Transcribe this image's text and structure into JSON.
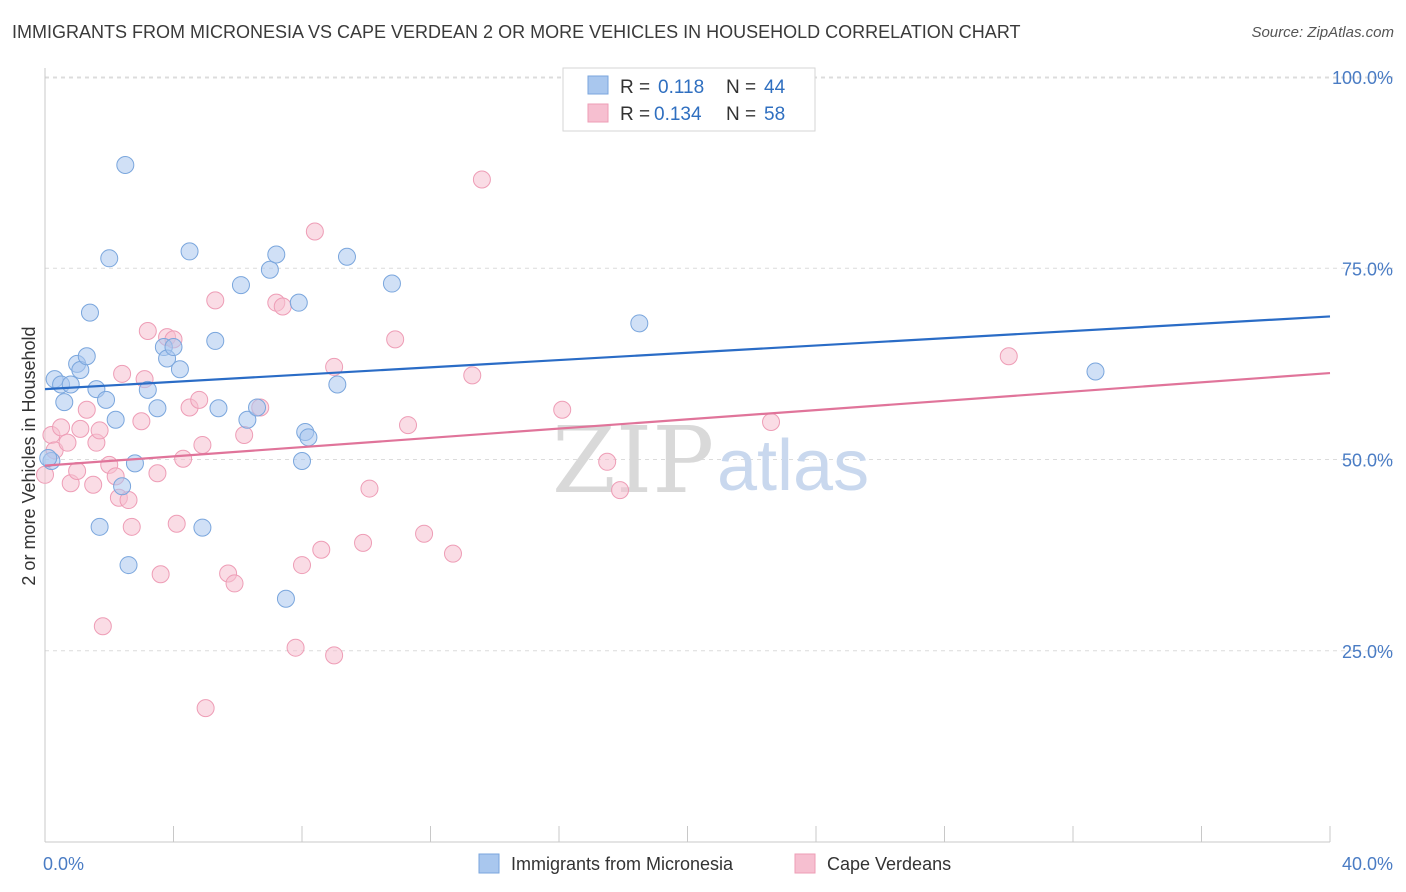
{
  "title": "IMMIGRANTS FROM MICRONESIA VS CAPE VERDEAN 2 OR MORE VEHICLES IN HOUSEHOLD CORRELATION CHART",
  "source": "Source: ZipAtlas.com",
  "watermark": {
    "zip": "ZIP",
    "atlas": "atlas"
  },
  "legend_top": {
    "r_label": "R =",
    "n_label": "N =",
    "rows": [
      {
        "r": "0.118",
        "n": "44"
      },
      {
        "r": "0.134",
        "n": "58"
      }
    ]
  },
  "colors": {
    "blue_fill": "#a9c7ee",
    "blue_stroke": "#7aa6dd",
    "blue_line": "#2a6cc6",
    "pink_fill": "#f6bfd0",
    "pink_stroke": "#ee9db6",
    "pink_line": "#e0749a",
    "axis_text": "#4a7cc4",
    "grid": "#dcdcdc"
  },
  "chart_data": {
    "type": "scatter",
    "title": "IMMIGRANTS FROM MICRONESIA VS CAPE VERDEAN 2 OR MORE VEHICLES IN HOUSEHOLD CORRELATION CHART",
    "xlabel": "",
    "ylabel": "2 or more Vehicles in Household",
    "xlim": [
      0,
      40
    ],
    "ylim": [
      0,
      105
    ],
    "x_tick_labels": [
      "0.0%",
      "40.0%"
    ],
    "y_ticks": [
      25,
      50,
      75,
      100
    ],
    "y_tick_labels": [
      "25.0%",
      "50.0%",
      "75.0%",
      "100.0%"
    ],
    "grid": "horizontal dashed",
    "legend_position": "top-center and bottom",
    "series": [
      {
        "name": "Immigrants from Micronesia",
        "color": "#a9c7ee",
        "r": 0.118,
        "n": 44,
        "trend": {
          "x": [
            0,
            40
          ],
          "y": [
            59.2,
            68.7
          ]
        },
        "points": [
          [
            0.2,
            49.8
          ],
          [
            0.3,
            60.5
          ],
          [
            0.5,
            59.8
          ],
          [
            0.6,
            57.5
          ],
          [
            0.8,
            59.8
          ],
          [
            1.0,
            62.5
          ],
          [
            1.1,
            61.7
          ],
          [
            1.3,
            63.5
          ],
          [
            1.4,
            69.2
          ],
          [
            1.6,
            59.2
          ],
          [
            1.7,
            41.2
          ],
          [
            1.9,
            57.8
          ],
          [
            2.0,
            76.3
          ],
          [
            2.2,
            55.2
          ],
          [
            2.4,
            46.5
          ],
          [
            2.5,
            88.5
          ],
          [
            2.6,
            36.2
          ],
          [
            2.8,
            49.5
          ],
          [
            3.2,
            59.1
          ],
          [
            3.5,
            56.7
          ],
          [
            3.7,
            64.7
          ],
          [
            3.8,
            63.2
          ],
          [
            4.0,
            64.7
          ],
          [
            4.2,
            61.8
          ],
          [
            4.5,
            77.2
          ],
          [
            4.9,
            41.1
          ],
          [
            5.3,
            65.5
          ],
          [
            5.4,
            56.7
          ],
          [
            6.1,
            72.8
          ],
          [
            6.3,
            55.2
          ],
          [
            6.6,
            56.8
          ],
          [
            7.0,
            74.8
          ],
          [
            7.2,
            76.8
          ],
          [
            7.5,
            31.8
          ],
          [
            7.9,
            70.5
          ],
          [
            8.0,
            49.8
          ],
          [
            8.1,
            53.6
          ],
          [
            8.2,
            52.9
          ],
          [
            9.1,
            59.8
          ],
          [
            9.4,
            76.5
          ],
          [
            10.8,
            73.0
          ],
          [
            18.5,
            67.8
          ],
          [
            32.7,
            61.5
          ],
          [
            0.1,
            50.2
          ]
        ]
      },
      {
        "name": "Cape Verdeans",
        "color": "#f6bfd0",
        "r": 0.134,
        "n": 58,
        "trend": {
          "x": [
            0,
            40
          ],
          "y": [
            49.2,
            61.3
          ]
        },
        "points": [
          [
            0.0,
            48.0
          ],
          [
            0.2,
            53.2
          ],
          [
            0.3,
            51.2
          ],
          [
            0.5,
            54.2
          ],
          [
            0.7,
            52.2
          ],
          [
            0.8,
            46.9
          ],
          [
            1.0,
            48.5
          ],
          [
            1.1,
            54.0
          ],
          [
            1.3,
            56.5
          ],
          [
            1.5,
            46.7
          ],
          [
            1.6,
            52.2
          ],
          [
            1.7,
            53.8
          ],
          [
            1.8,
            28.2
          ],
          [
            2.0,
            49.3
          ],
          [
            2.2,
            47.8
          ],
          [
            2.3,
            45.0
          ],
          [
            2.4,
            61.2
          ],
          [
            2.6,
            44.7
          ],
          [
            2.7,
            41.2
          ],
          [
            3.0,
            55.0
          ],
          [
            3.1,
            60.5
          ],
          [
            3.2,
            66.8
          ],
          [
            3.5,
            48.2
          ],
          [
            3.6,
            35.0
          ],
          [
            3.8,
            66.0
          ],
          [
            4.0,
            65.7
          ],
          [
            4.1,
            41.6
          ],
          [
            4.3,
            50.1
          ],
          [
            4.5,
            56.8
          ],
          [
            4.8,
            57.8
          ],
          [
            4.9,
            51.9
          ],
          [
            5.0,
            17.5
          ],
          [
            5.3,
            70.8
          ],
          [
            5.7,
            35.1
          ],
          [
            5.9,
            33.8
          ],
          [
            6.2,
            53.2
          ],
          [
            6.7,
            56.8
          ],
          [
            7.2,
            70.5
          ],
          [
            7.4,
            70.0
          ],
          [
            7.8,
            25.4
          ],
          [
            8.0,
            36.2
          ],
          [
            8.4,
            79.8
          ],
          [
            8.6,
            38.2
          ],
          [
            9.0,
            62.1
          ],
          [
            9.0,
            24.4
          ],
          [
            9.9,
            39.1
          ],
          [
            10.1,
            46.2
          ],
          [
            10.9,
            65.7
          ],
          [
            11.3,
            54.5
          ],
          [
            11.8,
            40.3
          ],
          [
            12.7,
            37.7
          ],
          [
            13.3,
            61.0
          ],
          [
            13.6,
            86.6
          ],
          [
            16.1,
            56.5
          ],
          [
            17.5,
            49.7
          ],
          [
            17.9,
            46.0
          ],
          [
            22.6,
            54.9
          ],
          [
            30.0,
            63.5
          ]
        ]
      }
    ]
  }
}
